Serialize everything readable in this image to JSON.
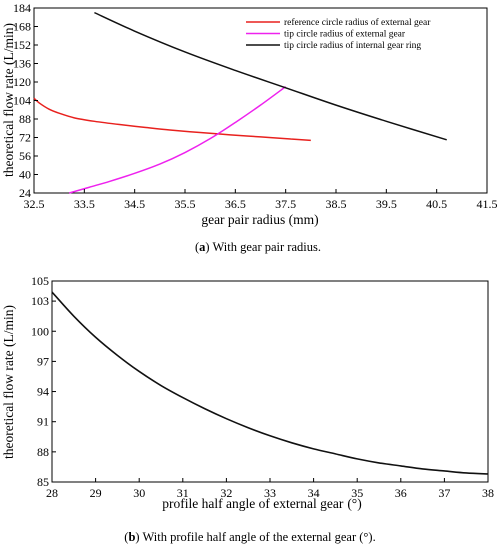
{
  "chart_data": [
    {
      "type": "line",
      "xlabel": "gear pair radius (mm)",
      "ylabel": "theoretical flow rate (L/min)",
      "xlim": [
        32.5,
        41.5
      ],
      "ylim": [
        24,
        184
      ],
      "xticks": [
        "32.5",
        "33.5",
        "34.5",
        "35.5",
        "36.5",
        "37.5",
        "38.5",
        "39.5",
        "40.5",
        "41.5"
      ],
      "yticks": [
        "24",
        "40",
        "56",
        "72",
        "88",
        "104",
        "120",
        "136",
        "152",
        "168",
        "184"
      ],
      "grid": false,
      "legend": "top-right",
      "caption_letter": "a",
      "caption_text": " With gear pair radius.",
      "series": [
        {
          "name": "reference circle radius of external gear",
          "color": "#e8211e",
          "x": [
            32.5,
            32.6,
            32.8,
            33.0,
            33.3,
            33.7,
            34.2,
            34.7,
            35.2,
            35.8,
            36.4,
            37.0,
            37.6,
            38.0
          ],
          "y": [
            106,
            102,
            96.5,
            93,
            89,
            86,
            83.2,
            80.8,
            78.5,
            76.3,
            74.3,
            72.5,
            70.7,
            69.5
          ]
        },
        {
          "name": "tip circle radius of external gear",
          "color": "#ee22ee",
          "x": [
            33.2,
            33.6,
            34.0,
            34.5,
            35.0,
            35.5,
            36.0,
            36.5,
            37.0,
            37.5
          ],
          "y": [
            24,
            29,
            34,
            41,
            49,
            59,
            71,
            85,
            100,
            116
          ]
        },
        {
          "name": "tip circle radius of internal gear ring",
          "color": "#111111",
          "x": [
            33.7,
            34.5,
            35.5,
            36.5,
            37.5,
            38.5,
            39.5,
            40.7
          ],
          "y": [
            180,
            164,
            146,
            130,
            115,
            100,
            86,
            70
          ]
        }
      ]
    },
    {
      "type": "line",
      "xlabel": "profile half angle of external gear",
      "xlabel_unit": "(°)",
      "ylabel": "theoretical flow rate (L/min)",
      "xlim": [
        28,
        38
      ],
      "ylim": [
        85,
        105
      ],
      "xticks": [
        "28",
        "29",
        "30",
        "31",
        "32",
        "33",
        "34",
        "35",
        "36",
        "37",
        "38"
      ],
      "yticks": [
        "85",
        "88",
        "91",
        "94",
        "97",
        "100",
        "103",
        "105"
      ],
      "grid": false,
      "caption_letter": "b",
      "caption_text": " With profile half angle of the external gear (°).",
      "series": [
        {
          "color": "#111111",
          "x": [
            28,
            28.5,
            29,
            29.5,
            30,
            30.5,
            31,
            31.5,
            32,
            32.5,
            33,
            33.5,
            34,
            34.5,
            35,
            35.5,
            36,
            36.5,
            37,
            37.5,
            38
          ],
          "y": [
            103.9,
            101.5,
            99.4,
            97.6,
            96.0,
            94.6,
            93.4,
            92.3,
            91.3,
            90.4,
            89.6,
            88.9,
            88.3,
            87.8,
            87.3,
            86.9,
            86.6,
            86.3,
            86.1,
            85.9,
            85.8
          ]
        }
      ]
    }
  ]
}
